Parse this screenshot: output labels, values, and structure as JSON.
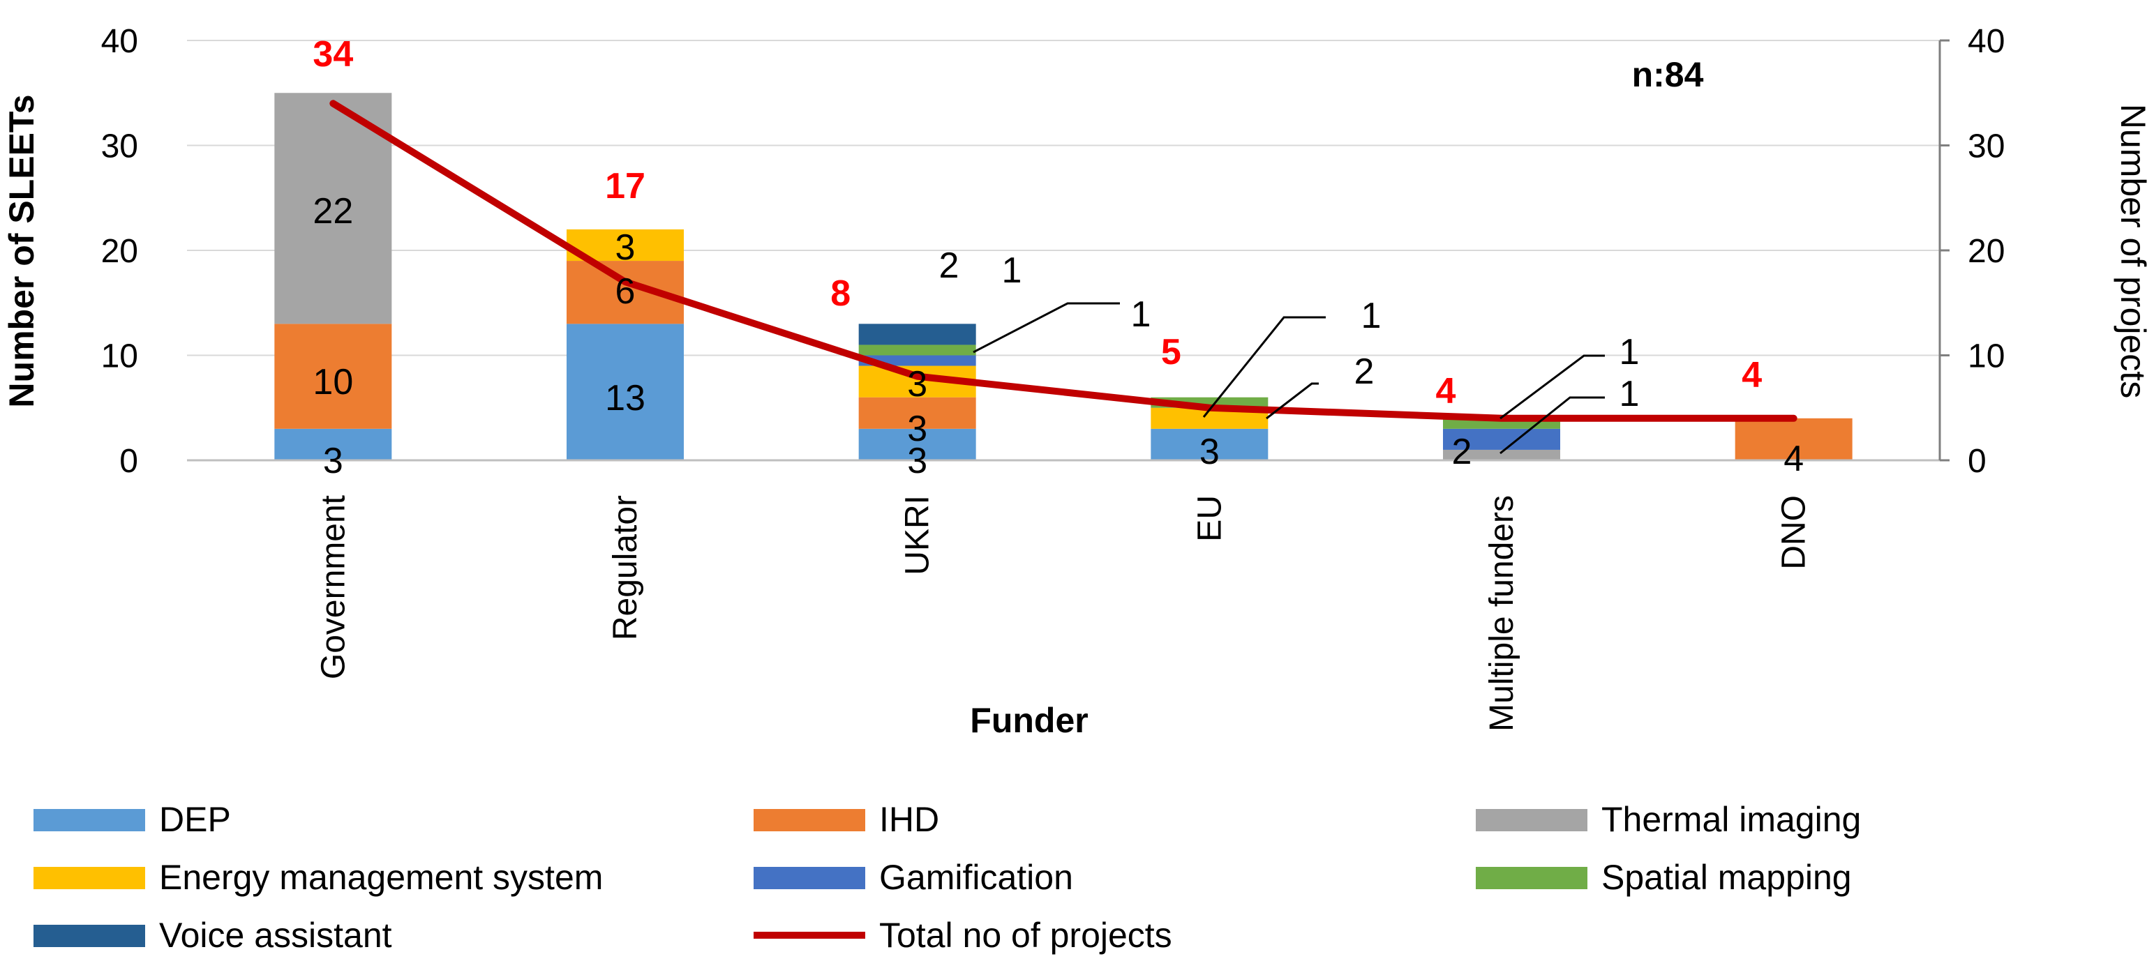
{
  "chart_data": {
    "type": "bar",
    "stacked": true,
    "xlabel": "Funder",
    "ylabel": "Number of SLEETs",
    "y2label": "Number of projects",
    "ylim": [
      0,
      40
    ],
    "y2lim": [
      0,
      40
    ],
    "yticks": [
      "0",
      "10",
      "20",
      "30",
      "40"
    ],
    "y2ticks": [
      "0",
      "10",
      "20",
      "30",
      "40"
    ],
    "annotation": "n:84",
    "categories": [
      "Government",
      "Regulator",
      "UKRI",
      "EU",
      "Multiple funders",
      "DNO"
    ],
    "series": [
      {
        "name": "DEP",
        "color": "#5b9bd5",
        "values": [
          3,
          13,
          3,
          3,
          0,
          0
        ]
      },
      {
        "name": "IHD",
        "color": "#ed7d31",
        "values": [
          10,
          6,
          3,
          0,
          0,
          4
        ]
      },
      {
        "name": "Thermal imaging",
        "color": "#a5a5a5",
        "values": [
          22,
          0,
          0,
          0,
          1,
          0
        ]
      },
      {
        "name": "Energy management system",
        "color": "#ffc000",
        "values": [
          0,
          3,
          3,
          2,
          0,
          0
        ]
      },
      {
        "name": "Gamification",
        "color": "#4472c4",
        "values": [
          0,
          0,
          1,
          0,
          2,
          0
        ]
      },
      {
        "name": "Spatial mapping",
        "color": "#70ad47",
        "values": [
          0,
          0,
          1,
          1,
          1,
          0
        ]
      },
      {
        "name": "Voice assistant",
        "color": "#255e91",
        "values": [
          0,
          0,
          2,
          0,
          0,
          0
        ]
      }
    ],
    "line": {
      "name": "Total no of projects",
      "color": "#c00000",
      "axis": "right",
      "values": [
        34,
        17,
        8,
        5,
        4,
        4
      ]
    }
  }
}
